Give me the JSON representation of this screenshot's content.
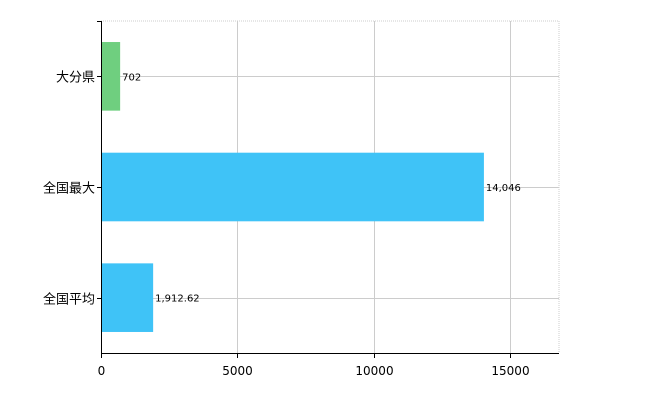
{
  "chart_data": {
    "type": "bar",
    "orientation": "horizontal",
    "categories": [
      "大分県",
      "全国最大",
      "全国平均"
    ],
    "values": [
      702,
      14046,
      1912.62
    ],
    "value_labels": [
      "702",
      "14,046",
      "1,912.62"
    ],
    "bar_colors": [
      "#6fcf7f",
      "#3fc3f7",
      "#3fc3f7"
    ],
    "xlim": [
      0,
      16800
    ],
    "x_ticks": [
      0,
      5000,
      10000,
      15000
    ],
    "x_tick_labels": [
      "0",
      "5000",
      "10000",
      "15000"
    ],
    "grid": true,
    "gridline_color": "#cccccc",
    "axis_color": "#000000",
    "legend": "none",
    "title": "",
    "xlabel": "",
    "ylabel": ""
  }
}
